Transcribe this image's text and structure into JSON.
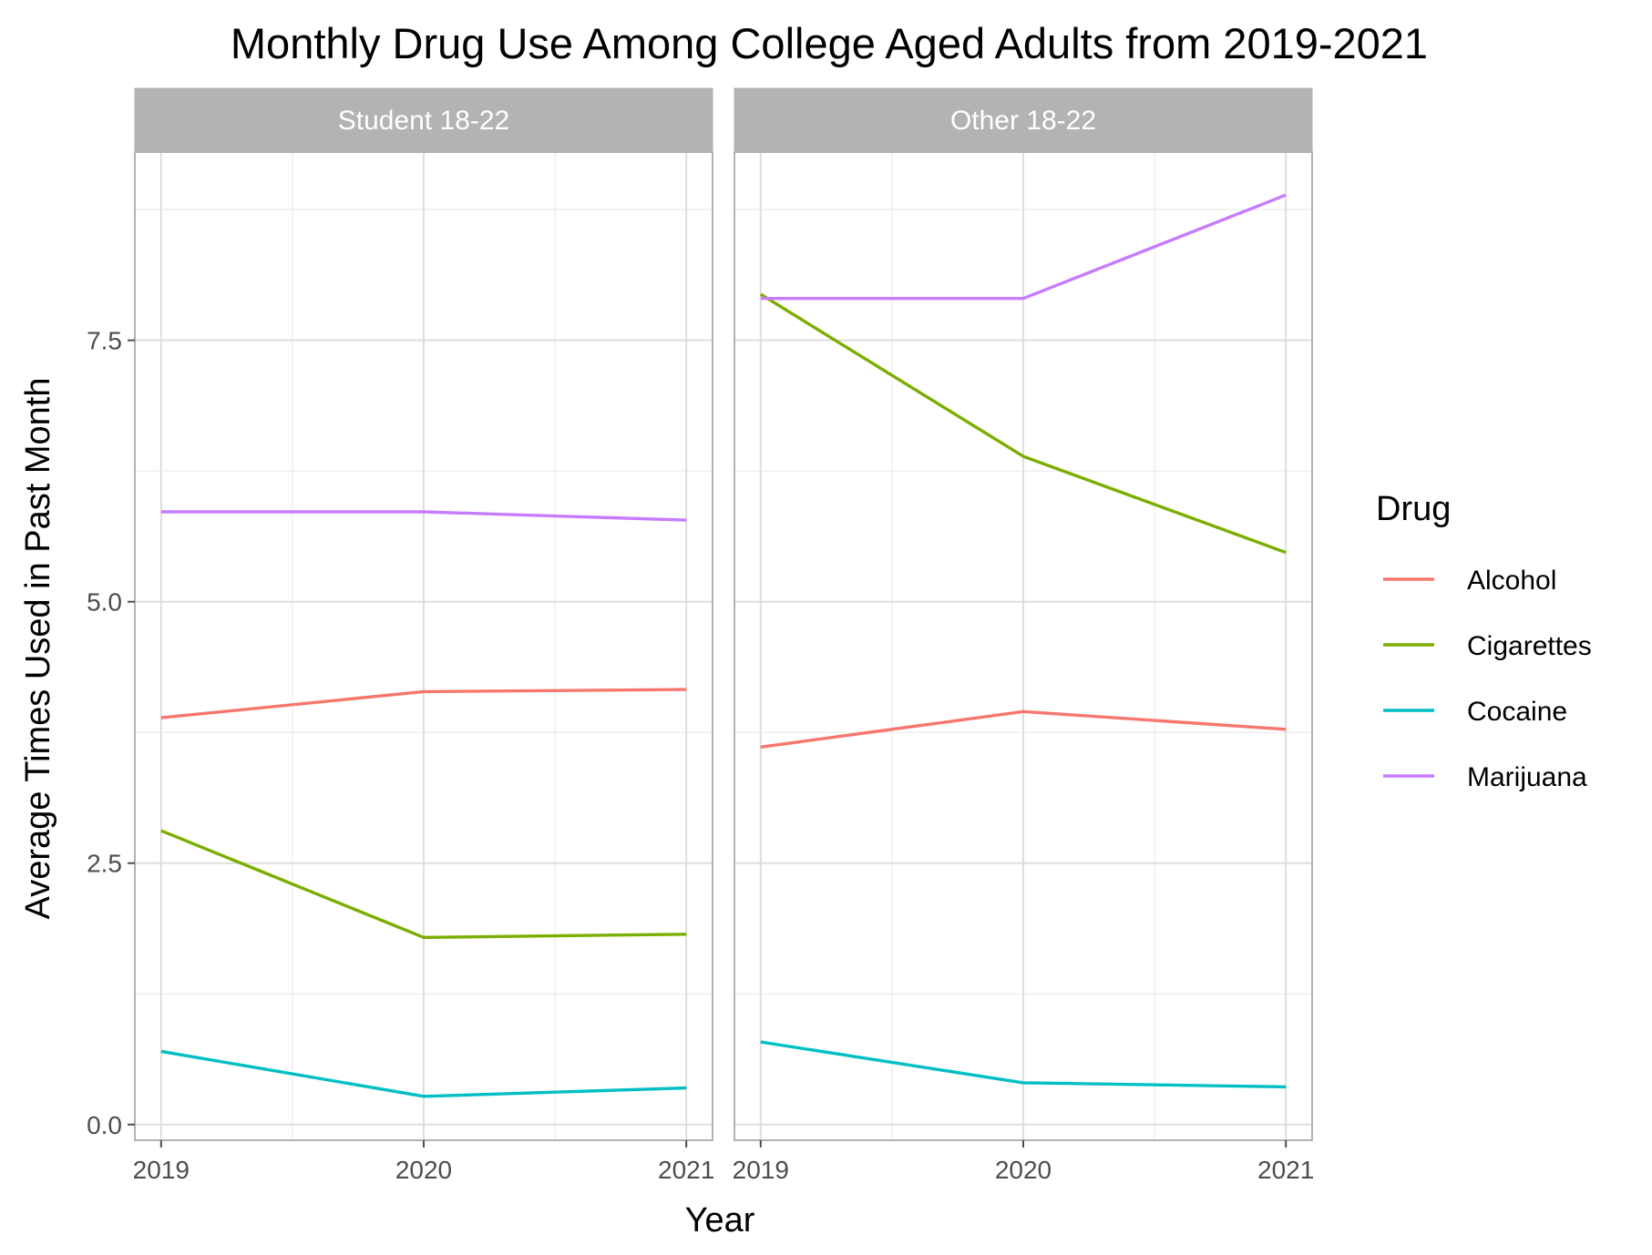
{
  "chart_data": {
    "type": "line",
    "title": "Monthly Drug Use Among College Aged Adults from 2019-2021",
    "xlabel": "Year",
    "ylabel": "Average Times Used in Past Month",
    "x": [
      2019,
      2020,
      2021
    ],
    "x_tick_labels": [
      "2019",
      "2020",
      "2021"
    ],
    "y_ticks": [
      0.0,
      2.5,
      5.0,
      7.5
    ],
    "y_tick_labels": [
      "0.0",
      "2.5",
      "5.0",
      "7.5"
    ],
    "ylim": [
      -0.15,
      9.3
    ],
    "xlim": [
      2018.9,
      2021.1
    ],
    "grid": true,
    "legend": {
      "title": "Drug",
      "position": "right",
      "entries": [
        "Alcohol",
        "Cigarettes",
        "Cocaine",
        "Marijuana"
      ]
    },
    "colors": {
      "Alcohol": "#F8766D",
      "Cigarettes": "#7CAE00",
      "Cocaine": "#00BFC4",
      "Marijuana": "#C77CFF"
    },
    "panels": [
      {
        "label": "Student 18-22",
        "series": [
          {
            "name": "Alcohol",
            "values": [
              3.89,
              4.14,
              4.16
            ]
          },
          {
            "name": "Cigarettes",
            "values": [
              2.81,
              1.79,
              1.82
            ]
          },
          {
            "name": "Cocaine",
            "values": [
              0.7,
              0.27,
              0.35
            ]
          },
          {
            "name": "Marijuana",
            "values": [
              5.86,
              5.86,
              5.78
            ]
          }
        ]
      },
      {
        "label": "Other 18-22",
        "series": [
          {
            "name": "Alcohol",
            "values": [
              3.61,
              3.95,
              3.78
            ]
          },
          {
            "name": "Cigarettes",
            "values": [
              7.94,
              6.39,
              5.47
            ]
          },
          {
            "name": "Cocaine",
            "values": [
              0.79,
              0.4,
              0.36
            ]
          },
          {
            "name": "Marijuana",
            "values": [
              7.9,
              7.9,
              8.89
            ]
          }
        ]
      }
    ]
  }
}
